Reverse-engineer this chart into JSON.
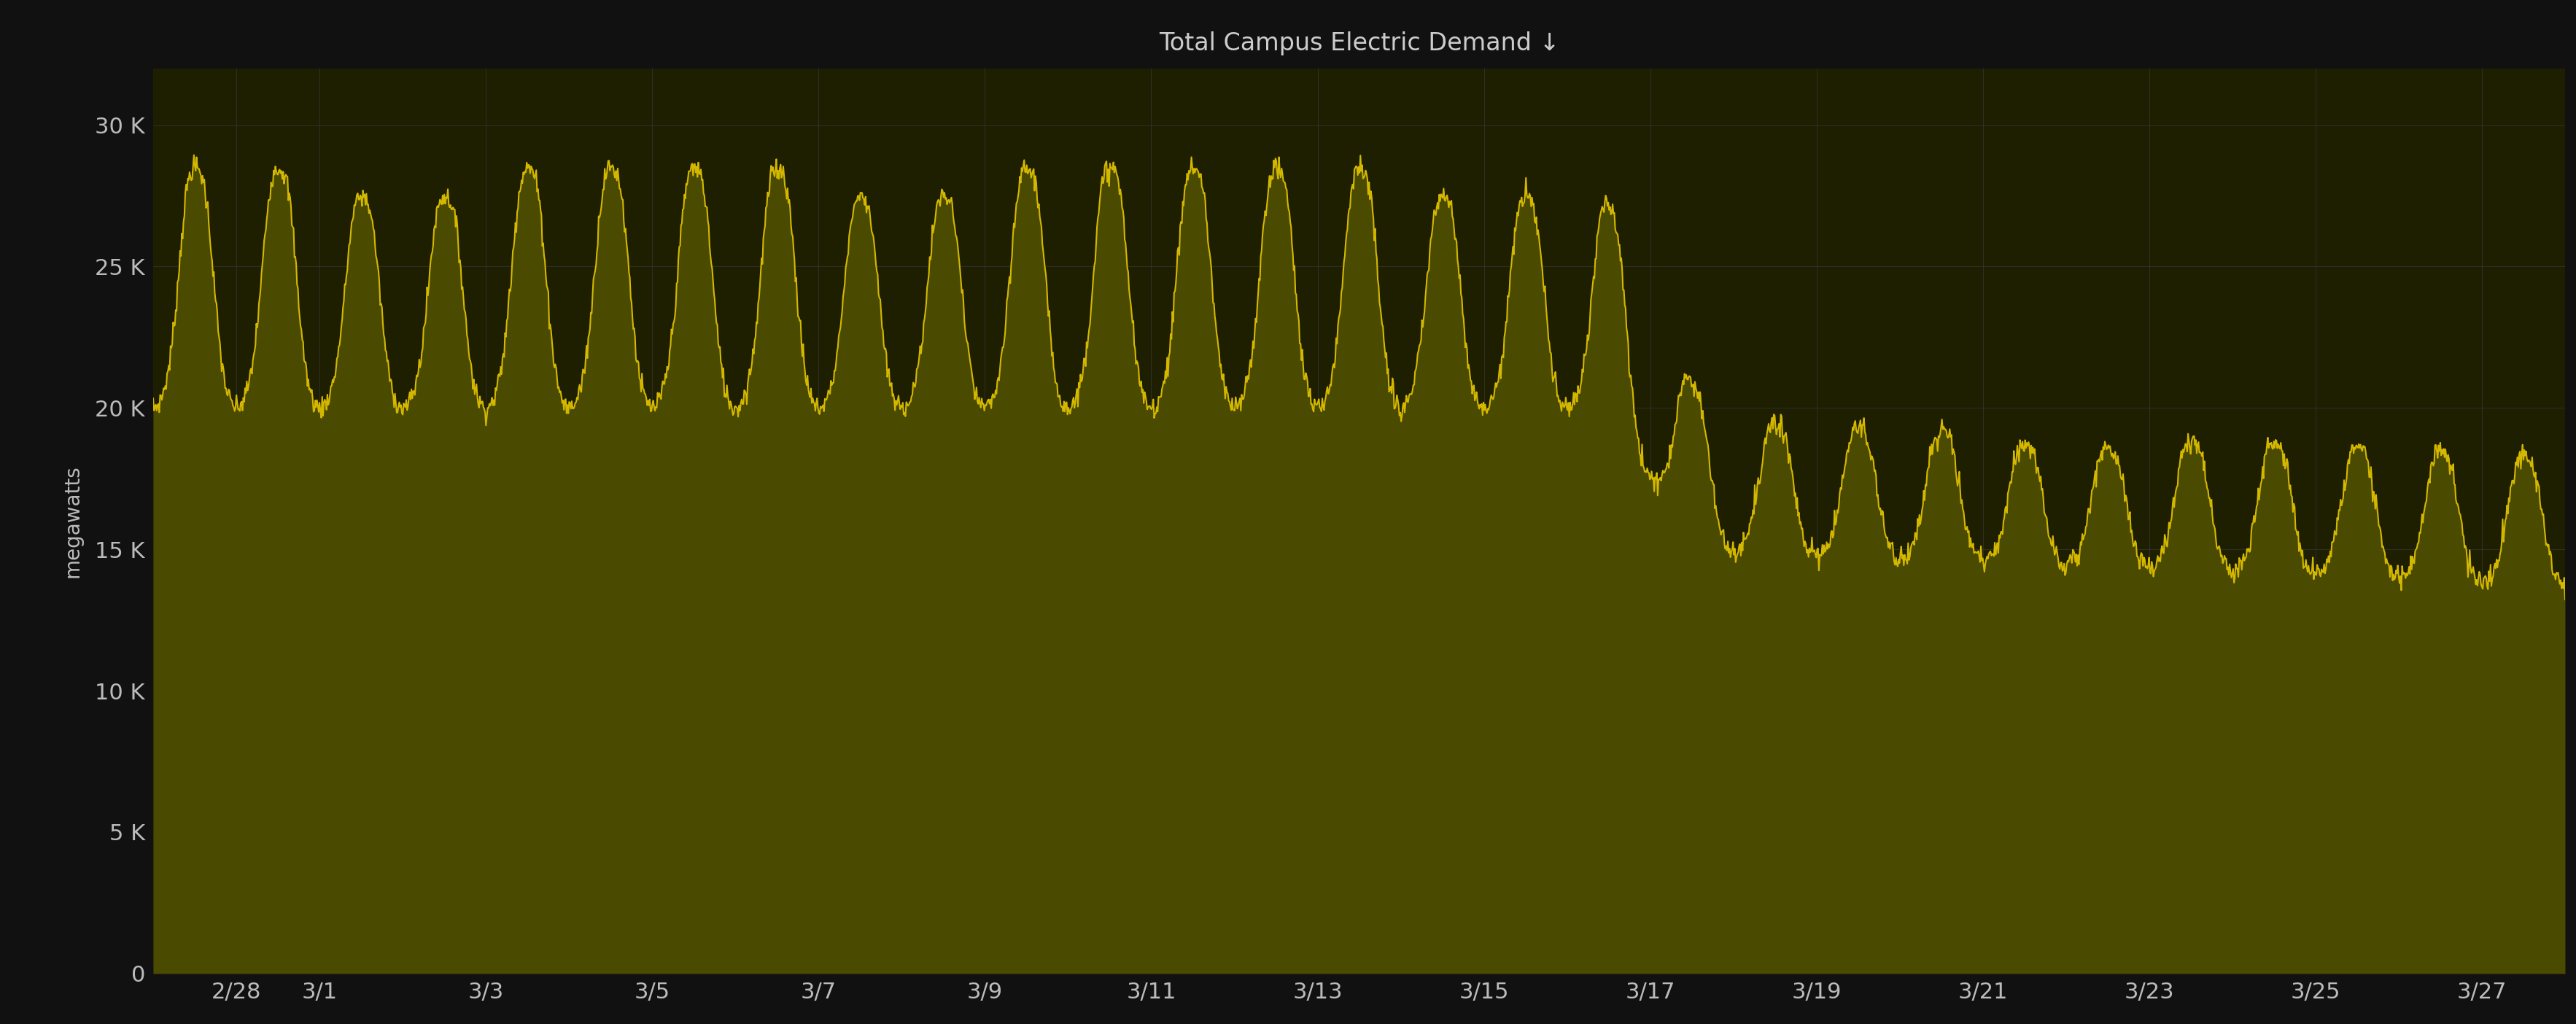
{
  "title": "Total Campus Electric Demand ↓",
  "ylabel": "megawatts",
  "bg_color": "#111111",
  "plot_bg_color": "#1e1e00",
  "line_color": "#d4b800",
  "fill_color": "#4a4a00",
  "grid_color": "#333333",
  "tick_color": "#bbbbbb",
  "title_color": "#cccccc",
  "ylim": [
    0,
    32000
  ],
  "yticks": [
    0,
    5000,
    10000,
    15000,
    20000,
    25000,
    30000
  ],
  "ytick_labels": [
    "0",
    "5 K",
    "10 K",
    "15 K",
    "20 K",
    "25 K",
    "30 K"
  ],
  "xtick_labels": [
    "2/28",
    "3/1",
    "3/3",
    "3/5",
    "3/7",
    "3/9",
    "3/11",
    "3/13",
    "3/15",
    "3/17",
    "3/19",
    "3/21",
    "3/23",
    "3/25",
    "3/27"
  ],
  "num_days": 29,
  "points_per_day": 96
}
